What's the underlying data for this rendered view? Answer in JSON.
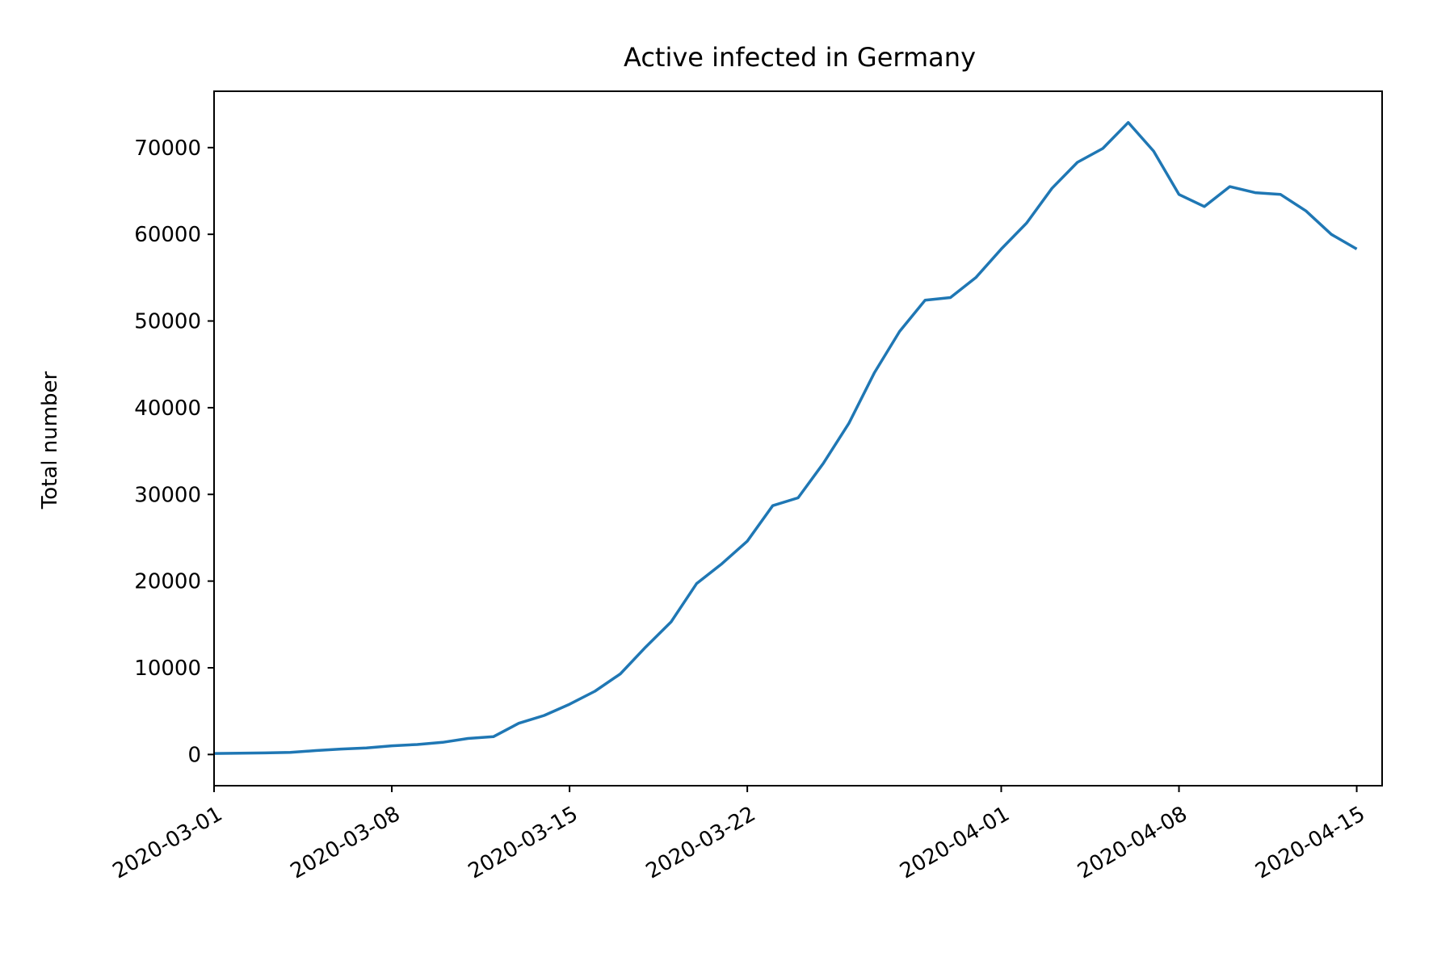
{
  "chart_data": {
    "type": "line",
    "title": "Active infected in Germany",
    "xlabel": "",
    "ylabel": "Total number",
    "xlim": [
      "2020-03-01",
      "2020-04-16"
    ],
    "ylim": [
      -3600,
      76500
    ],
    "grid": false,
    "legend": "none",
    "x_ticks": [
      "2020-03-01",
      "2020-03-08",
      "2020-03-15",
      "2020-03-22",
      "2020-04-01",
      "2020-04-08",
      "2020-04-15"
    ],
    "y_ticks": [
      0,
      10000,
      20000,
      30000,
      40000,
      50000,
      60000,
      70000
    ],
    "series": [
      {
        "color": "#1f77b4",
        "x": [
          "2020-03-01",
          "2020-03-02",
          "2020-03-03",
          "2020-03-04",
          "2020-03-05",
          "2020-03-06",
          "2020-03-07",
          "2020-03-08",
          "2020-03-09",
          "2020-03-10",
          "2020-03-11",
          "2020-03-12",
          "2020-03-13",
          "2020-03-14",
          "2020-03-15",
          "2020-03-16",
          "2020-03-17",
          "2020-03-18",
          "2020-03-19",
          "2020-03-20",
          "2020-03-21",
          "2020-03-22",
          "2020-03-23",
          "2020-03-24",
          "2020-03-25",
          "2020-03-26",
          "2020-03-27",
          "2020-03-28",
          "2020-03-29",
          "2020-03-30",
          "2020-03-31",
          "2020-04-01",
          "2020-04-02",
          "2020-04-03",
          "2020-04-04",
          "2020-04-05",
          "2020-04-06",
          "2020-04-07",
          "2020-04-08",
          "2020-04-09",
          "2020-04-10",
          "2020-04-11",
          "2020-04-12",
          "2020-04-13",
          "2020-04-14",
          "2020-04-15"
        ],
        "values": [
          115,
          140,
          180,
          240,
          450,
          630,
          760,
          1000,
          1150,
          1400,
          1850,
          2050,
          3600,
          4500,
          5800,
          7300,
          9300,
          12400,
          15300,
          19700,
          22000,
          24600,
          28700,
          29600,
          33600,
          38200,
          44000,
          48800,
          52400,
          52700,
          55000,
          58300,
          61300,
          65300,
          68300,
          69900,
          72900,
          69600,
          64600,
          63200,
          65500,
          64800,
          64600,
          62700,
          60000,
          58300
        ]
      }
    ]
  }
}
